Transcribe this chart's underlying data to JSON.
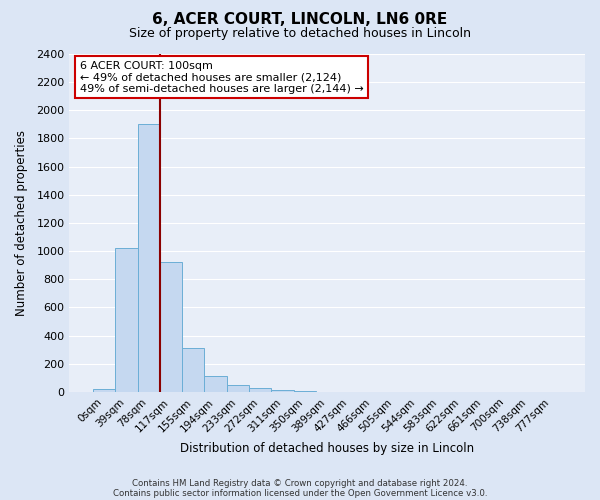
{
  "title": "6, ACER COURT, LINCOLN, LN6 0RE",
  "subtitle": "Size of property relative to detached houses in Lincoln",
  "xlabel": "Distribution of detached houses by size in Lincoln",
  "ylabel": "Number of detached properties",
  "bar_labels": [
    "0sqm",
    "39sqm",
    "78sqm",
    "117sqm",
    "155sqm",
    "194sqm",
    "233sqm",
    "272sqm",
    "311sqm",
    "350sqm",
    "389sqm",
    "427sqm",
    "466sqm",
    "505sqm",
    "544sqm",
    "583sqm",
    "622sqm",
    "661sqm",
    "700sqm",
    "738sqm",
    "777sqm"
  ],
  "bar_values": [
    20,
    1020,
    1900,
    920,
    315,
    110,
    50,
    28,
    12,
    5,
    2,
    0,
    0,
    0,
    0,
    0,
    0,
    0,
    0,
    0,
    0
  ],
  "bar_color": "#c5d8f0",
  "bar_edge_color": "#6baed6",
  "vline_color": "#8b0000",
  "ylim": [
    0,
    2400
  ],
  "yticks": [
    0,
    200,
    400,
    600,
    800,
    1000,
    1200,
    1400,
    1600,
    1800,
    2000,
    2200,
    2400
  ],
  "annotation_title": "6 ACER COURT: 100sqm",
  "annotation_line1": "← 49% of detached houses are smaller (2,124)",
  "annotation_line2": "49% of semi-detached houses are larger (2,144) →",
  "annotation_box_color": "#ffffff",
  "annotation_box_edge": "#cc0000",
  "footer_line1": "Contains HM Land Registry data © Crown copyright and database right 2024.",
  "footer_line2": "Contains public sector information licensed under the Open Government Licence v3.0.",
  "bg_color": "#dce6f5",
  "plot_bg_color": "#e8eef8",
  "grid_color": "#ffffff",
  "title_fontsize": 11,
  "subtitle_fontsize": 9
}
